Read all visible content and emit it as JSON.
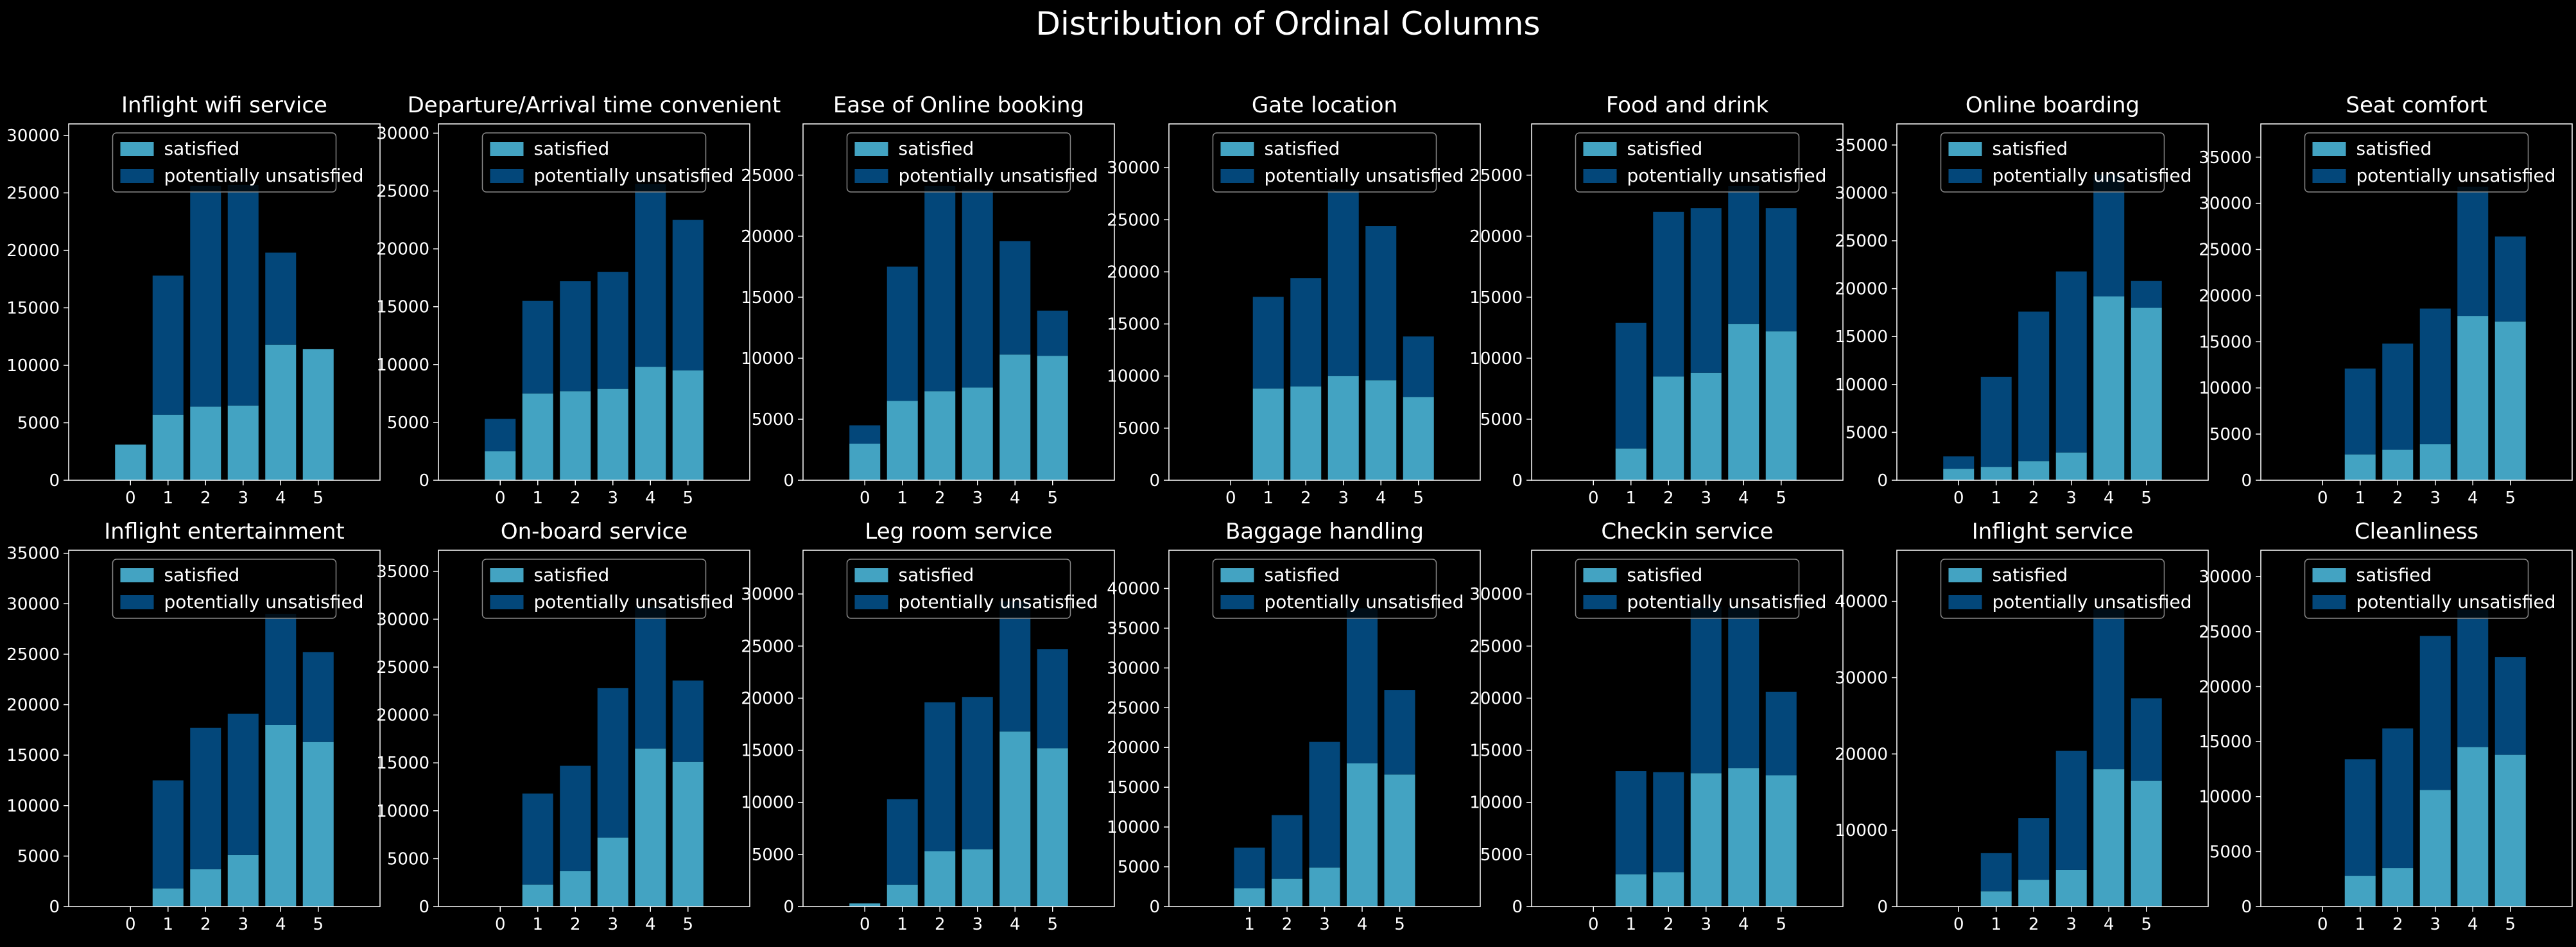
{
  "suptitle": "Distribution of Ordinal Columns",
  "colors": {
    "background": "#000000",
    "satisfied": "#43a3c2",
    "unsatisfied": "#03477a",
    "text": "#ffffff",
    "legend_bg": "#000000",
    "legend_border": "#888888"
  },
  "legend": [
    "satisfied",
    "potentially unsatisfied"
  ],
  "chart_data": [
    {
      "type": "bar",
      "title": "Inflight wifi service",
      "categories": [
        "0",
        "1",
        "2",
        "3",
        "4",
        "5"
      ],
      "yticks": [
        0,
        5000,
        10000,
        15000,
        20000,
        25000,
        30000
      ],
      "ylim": [
        0,
        31000
      ],
      "legend_position": "top",
      "series": [
        {
          "name": "satisfied",
          "values": [
            3100,
            5700,
            6400,
            6500,
            11800,
            11400
          ]
        },
        {
          "name": "potentially unsatisfied",
          "values": [
            0,
            12100,
            19200,
            19200,
            8000,
            0
          ]
        }
      ]
    },
    {
      "type": "bar",
      "title": "Departure/Arrival time convenient",
      "categories": [
        "0",
        "1",
        "2",
        "3",
        "4",
        "5"
      ],
      "yticks": [
        0,
        5000,
        10000,
        15000,
        20000,
        25000,
        30000
      ],
      "ylim": [
        0,
        30800
      ],
      "legend_position": "top",
      "series": [
        {
          "name": "satisfied",
          "values": [
            2500,
            7500,
            7700,
            7900,
            9800,
            9500
          ]
        },
        {
          "name": "potentially unsatisfied",
          "values": [
            2800,
            8000,
            9500,
            10100,
            15800,
            13000
          ]
        }
      ]
    },
    {
      "type": "bar",
      "title": "Ease of Online booking",
      "categories": [
        "0",
        "1",
        "2",
        "3",
        "4",
        "5"
      ],
      "yticks": [
        0,
        5000,
        10000,
        15000,
        20000,
        25000
      ],
      "ylim": [
        0,
        29200
      ],
      "legend_position": "top",
      "series": [
        {
          "name": "satisfied",
          "values": [
            3000,
            6500,
            7300,
            7600,
            10300,
            10200
          ]
        },
        {
          "name": "potentially unsatisfied",
          "values": [
            1500,
            11000,
            16800,
            16200,
            9300,
            3700
          ]
        }
      ]
    },
    {
      "type": "bar",
      "title": "Gate location",
      "categories": [
        "0",
        "1",
        "2",
        "3",
        "4",
        "5"
      ],
      "yticks": [
        0,
        5000,
        10000,
        15000,
        20000,
        25000,
        30000
      ],
      "ylim": [
        0,
        34200
      ],
      "legend_position": "top",
      "series": [
        {
          "name": "satisfied",
          "values": [
            0,
            8800,
            9000,
            10000,
            9600,
            8000
          ]
        },
        {
          "name": "potentially unsatisfied",
          "values": [
            0,
            8800,
            10400,
            17900,
            14800,
            5800
          ]
        }
      ]
    },
    {
      "type": "bar",
      "title": "Food and drink",
      "categories": [
        "0",
        "1",
        "2",
        "3",
        "4",
        "5"
      ],
      "yticks": [
        0,
        5000,
        10000,
        15000,
        20000,
        25000
      ],
      "ylim": [
        0,
        29200
      ],
      "legend_position": "top",
      "series": [
        {
          "name": "satisfied",
          "values": [
            0,
            2600,
            8500,
            8800,
            12800,
            12200
          ]
        },
        {
          "name": "potentially unsatisfied",
          "values": [
            0,
            10300,
            13500,
            13500,
            11300,
            10100
          ]
        }
      ]
    },
    {
      "type": "bar",
      "title": "Online boarding",
      "categories": [
        "0",
        "1",
        "2",
        "3",
        "4",
        "5"
      ],
      "yticks": [
        0,
        5000,
        10000,
        15000,
        20000,
        25000,
        30000,
        35000
      ],
      "ylim": [
        0,
        37200
      ],
      "legend_position": "top",
      "series": [
        {
          "name": "satisfied",
          "values": [
            1200,
            1400,
            2000,
            2900,
            19200,
            18000
          ]
        },
        {
          "name": "potentially unsatisfied",
          "values": [
            1300,
            9400,
            15600,
            18900,
            12700,
            2800
          ]
        }
      ]
    },
    {
      "type": "bar",
      "title": "Seat comfort",
      "categories": [
        "0",
        "1",
        "2",
        "3",
        "4",
        "5"
      ],
      "yticks": [
        0,
        5000,
        10000,
        15000,
        20000,
        25000,
        30000,
        35000
      ],
      "ylim": [
        0,
        38600
      ],
      "legend_position": "top",
      "series": [
        {
          "name": "satisfied",
          "values": [
            0,
            2800,
            3300,
            3900,
            17800,
            17200
          ]
        },
        {
          "name": "potentially unsatisfied",
          "values": [
            0,
            9300,
            11500,
            14700,
            14000,
            9200
          ]
        }
      ]
    },
    {
      "type": "bar",
      "title": "Inflight entertainment",
      "categories": [
        "0",
        "1",
        "2",
        "3",
        "4",
        "5"
      ],
      "yticks": [
        0,
        5000,
        10000,
        15000,
        20000,
        25000,
        30000,
        35000
      ],
      "ylim": [
        0,
        35300
      ],
      "legend_position": "top",
      "series": [
        {
          "name": "satisfied",
          "values": [
            0,
            1800,
            3700,
            5100,
            18000,
            16300
          ]
        },
        {
          "name": "potentially unsatisfied",
          "values": [
            0,
            10700,
            14000,
            14000,
            11000,
            8900
          ]
        }
      ]
    },
    {
      "type": "bar",
      "title": "On-board service",
      "categories": [
        "0",
        "1",
        "2",
        "3",
        "4",
        "5"
      ],
      "yticks": [
        0,
        5000,
        10000,
        15000,
        20000,
        25000,
        30000,
        35000
      ],
      "ylim": [
        0,
        37200
      ],
      "legend_position": "top",
      "series": [
        {
          "name": "satisfied",
          "values": [
            0,
            2300,
            3700,
            7200,
            16500,
            15100
          ]
        },
        {
          "name": "potentially unsatisfied",
          "values": [
            0,
            9500,
            11000,
            15600,
            14800,
            8500
          ]
        }
      ]
    },
    {
      "type": "bar",
      "title": "Leg room service",
      "categories": [
        "0",
        "1",
        "2",
        "3",
        "4",
        "5"
      ],
      "yticks": [
        0,
        5000,
        10000,
        15000,
        20000,
        25000,
        30000
      ],
      "ylim": [
        0,
        34200
      ],
      "legend_position": "top",
      "series": [
        {
          "name": "satisfied",
          "values": [
            300,
            2100,
            5300,
            5500,
            16800,
            15200
          ]
        },
        {
          "name": "potentially unsatisfied",
          "values": [
            0,
            8200,
            14300,
            14600,
            12500,
            9500
          ]
        }
      ]
    },
    {
      "type": "bar",
      "title": "Baggage handling",
      "categories": [
        "1",
        "2",
        "3",
        "4",
        "5"
      ],
      "yticks": [
        0,
        5000,
        10000,
        15000,
        20000,
        25000,
        30000,
        35000,
        40000
      ],
      "ylim": [
        0,
        44800
      ],
      "legend_position": "top",
      "series": [
        {
          "name": "satisfied",
          "values": [
            2300,
            3500,
            4900,
            18000,
            16600
          ]
        },
        {
          "name": "potentially unsatisfied",
          "values": [
            5100,
            8000,
            15800,
            19500,
            10600
          ]
        }
      ]
    },
    {
      "type": "bar",
      "title": "Checkin service",
      "categories": [
        "0",
        "1",
        "2",
        "3",
        "4",
        "5"
      ],
      "yticks": [
        0,
        5000,
        10000,
        15000,
        20000,
        25000,
        30000
      ],
      "ylim": [
        0,
        34200
      ],
      "legend_position": "top",
      "series": [
        {
          "name": "satisfied",
          "values": [
            0,
            3100,
            3300,
            12800,
            13300,
            12600
          ]
        },
        {
          "name": "potentially unsatisfied",
          "values": [
            0,
            9900,
            9600,
            16000,
            15400,
            8000
          ]
        }
      ]
    },
    {
      "type": "bar",
      "title": "Inflight service",
      "categories": [
        "0",
        "1",
        "2",
        "3",
        "4",
        "5"
      ],
      "yticks": [
        0,
        10000,
        20000,
        30000,
        40000
      ],
      "ylim": [
        0,
        46700
      ],
      "legend_position": "top",
      "series": [
        {
          "name": "satisfied",
          "values": [
            0,
            2000,
            3500,
            4800,
            18000,
            16500
          ]
        },
        {
          "name": "potentially unsatisfied",
          "values": [
            0,
            5000,
            8100,
            15600,
            21000,
            10800
          ]
        }
      ]
    },
    {
      "type": "bar",
      "title": "Cleanliness",
      "categories": [
        "0",
        "1",
        "2",
        "3",
        "4",
        "5"
      ],
      "yticks": [
        0,
        5000,
        10000,
        15000,
        20000,
        25000,
        30000
      ],
      "ylim": [
        0,
        32400
      ],
      "legend_position": "top",
      "series": [
        {
          "name": "satisfied",
          "values": [
            0,
            2800,
            3500,
            10600,
            14500,
            13800
          ]
        },
        {
          "name": "potentially unsatisfied",
          "values": [
            0,
            10600,
            12700,
            14000,
            12500,
            8900
          ]
        }
      ]
    }
  ]
}
